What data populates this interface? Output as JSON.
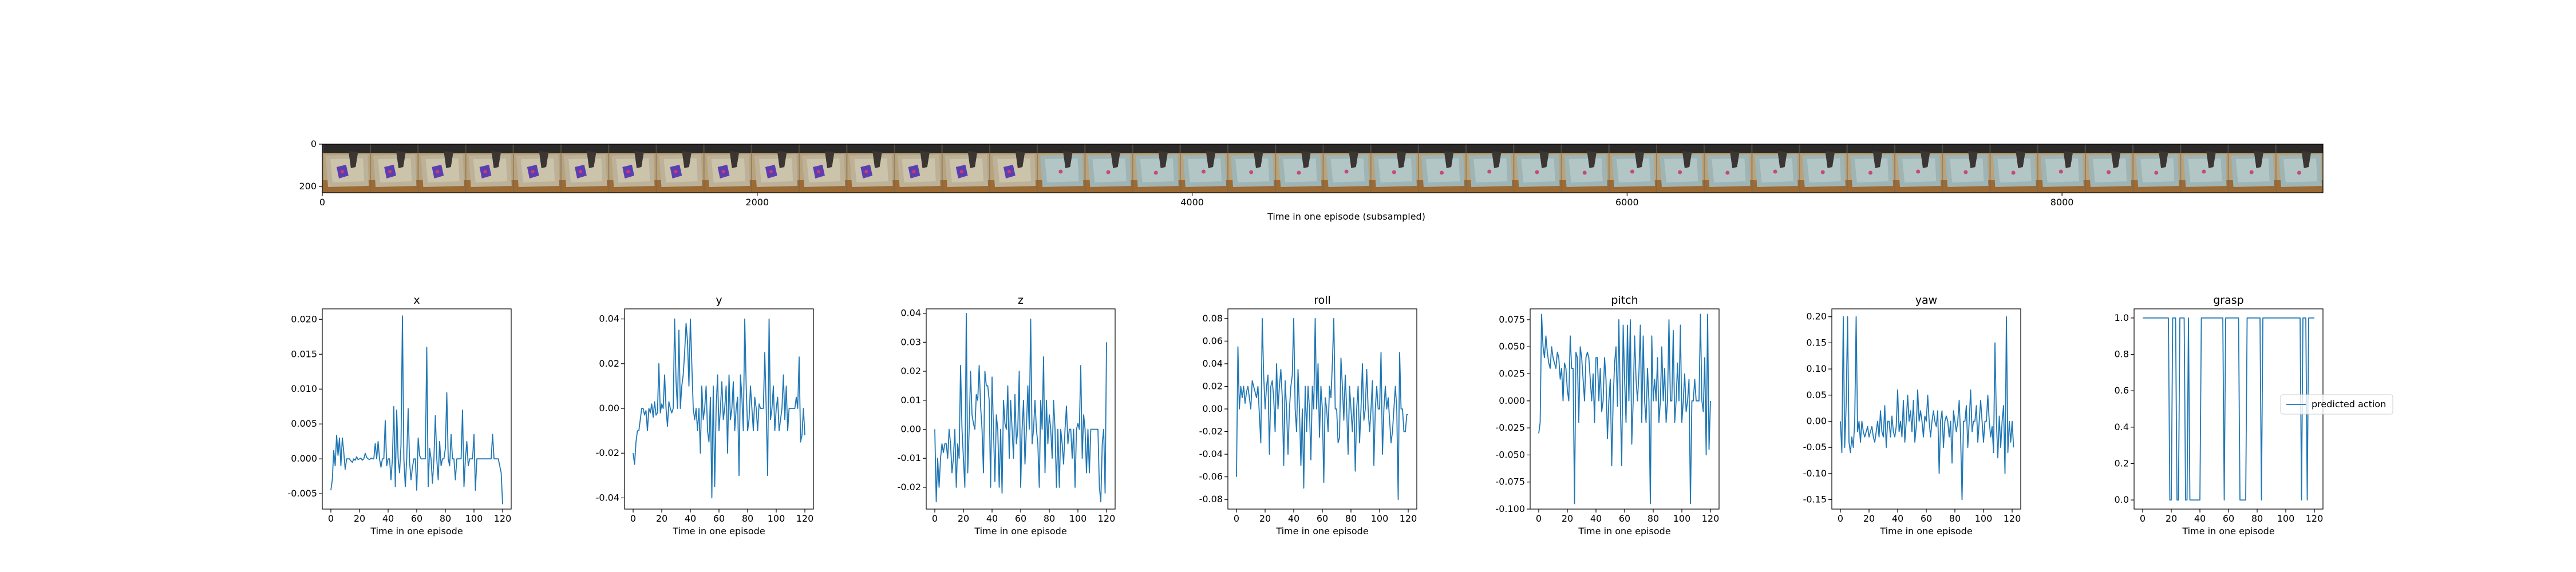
{
  "filmstrip": {
    "xlabel": "Time in one episode (subsampled)",
    "xlim": [
      0,
      9200
    ],
    "ylim": [
      0,
      230
    ],
    "xticks": [
      0,
      2000,
      4000,
      6000,
      8000
    ],
    "yticks": [
      0,
      200
    ],
    "frames": 42
  },
  "chart_data": [
    {
      "type": "line",
      "title": "x",
      "xlabel": "Time in one episode",
      "xlim": [
        -6,
        126
      ],
      "ylim": [
        -0.0072,
        0.0215
      ],
      "xticks": [
        0,
        20,
        40,
        60,
        80,
        100,
        120
      ],
      "yticks": [
        -0.005,
        0.0,
        0.005,
        0.01,
        0.015,
        0.02
      ],
      "series": [
        {
          "values": [
            -0.0045,
            -0.003,
            0.0012,
            -0.001,
            0.0034,
            0.0005,
            0.003,
            -0.001,
            0.003,
            0.001,
            -0.0015,
            0.0,
            0.0,
            0.0,
            -0.0003,
            -0.0005,
            0.0,
            -0.0002,
            0.0003,
            -0.0001,
            0.0,
            0.0001,
            -0.0002,
            0.0,
            0.0008,
            0.0002,
            0.0,
            -0.0001,
            0.0001,
            0.0,
            0.0,
            0.0022,
            0.0,
            0.0025,
            0.0,
            -0.0012,
            0.0,
            0.0,
            0.0055,
            -0.001,
            0.0,
            0.0,
            -0.003,
            0.0,
            0.0075,
            -0.004,
            0.007,
            0.0,
            -0.002,
            0.002,
            0.0205,
            0.0,
            -0.004,
            0.0,
            0.0072,
            -0.0005,
            -0.003,
            -0.0012,
            0.0,
            0.0,
            -0.0045,
            0.003,
            0.0005,
            0.0,
            0.0,
            0.0,
            0.0,
            0.016,
            -0.004,
            0.0015,
            0.0,
            -0.0035,
            0.0,
            0.0062,
            0.0,
            -0.003,
            0.0025,
            -0.001,
            0.0,
            0.0,
            0.0015,
            0.0095,
            0.0,
            -0.001,
            0.0035,
            0.0,
            0.0,
            -0.003,
            0.0,
            0.0,
            0.0,
            0.0,
            0.007,
            -0.004,
            0.0,
            0.0025,
            -0.001,
            0.0,
            0.0,
            0.0,
            0.0035,
            -0.0045,
            0.0,
            0.0,
            0.0,
            0.0,
            0.0,
            0.0,
            0.0,
            0.0,
            0.0,
            0.0,
            0.0,
            0.0035,
            0.0,
            0.0,
            0.0,
            0.0,
            -0.001,
            -0.002,
            -0.0065
          ]
        }
      ]
    },
    {
      "type": "line",
      "title": "y",
      "xlabel": "Time in one episode",
      "xlim": [
        -6,
        126
      ],
      "ylim": [
        -0.045,
        0.0445
      ],
      "xticks": [
        0,
        20,
        40,
        60,
        80,
        100,
        120
      ],
      "yticks": [
        -0.04,
        -0.02,
        0.0,
        0.02,
        0.04
      ],
      "series": [
        {
          "values": [
            -0.02,
            -0.025,
            -0.015,
            -0.01,
            -0.01,
            -0.005,
            0.0,
            0.0,
            -0.003,
            -0.001,
            -0.01,
            0.0,
            -0.002,
            0.002,
            -0.004,
            0.003,
            -0.003,
            -0.002,
            0.02,
            -0.002,
            0.002,
            0.0,
            0.015,
            0.0,
            -0.008,
            0.003,
            0.0,
            -0.002,
            0.0,
            0.04,
            0.012,
            0.0,
            0.035,
            0.0,
            0.01,
            0.015,
            0.025,
            0.038,
            0.03,
            0.01,
            0.04,
            0.02,
            0.0,
            -0.005,
            0.0,
            -0.01,
            0.0,
            -0.02,
            0.01,
            -0.005,
            0.0,
            0.01,
            -0.01,
            -0.015,
            0.005,
            -0.04,
            0.01,
            -0.035,
            0.0,
            0.015,
            -0.01,
            0.0,
            0.012,
            -0.005,
            0.0,
            0.01,
            -0.02,
            0.015,
            -0.005,
            0.0,
            0.012,
            -0.01,
            0.0,
            0.005,
            -0.03,
            0.015,
            0.005,
            -0.01,
            0.04,
            0.01,
            -0.01,
            -0.005,
            0.01,
            0.0,
            -0.01,
            0.005,
            0.0,
            -0.01,
            0.002,
            0.0,
            0.0,
            0.0,
            0.025,
            0.0,
            -0.03,
            0.04,
            -0.005,
            0.0,
            0.01,
            -0.01,
            0.0,
            0.005,
            -0.01,
            -0.005,
            0.0,
            0.015,
            -0.005,
            0.01,
            -0.01,
            0.0,
            0.0,
            0.0,
            0.0,
            0.0,
            0.005,
            0.0,
            0.023,
            -0.015,
            -0.012,
            0.0,
            -0.012
          ]
        }
      ]
    },
    {
      "type": "line",
      "title": "z",
      "xlabel": "Time in one episode",
      "xlim": [
        -6,
        126
      ],
      "ylim": [
        -0.0275,
        0.0415
      ],
      "xticks": [
        0,
        20,
        40,
        60,
        80,
        100,
        120
      ],
      "yticks": [
        -0.02,
        -0.01,
        0.0,
        0.01,
        0.02,
        0.03,
        0.04
      ],
      "series": [
        {
          "values": [
            0.0,
            -0.025,
            -0.01,
            -0.02,
            -0.01,
            -0.005,
            -0.008,
            -0.005,
            -0.005,
            -0.01,
            0.0,
            -0.005,
            -0.015,
            -0.01,
            0.0,
            -0.02,
            -0.005,
            -0.01,
            0.022,
            0.0,
            -0.01,
            -0.02,
            0.04,
            -0.015,
            0.0,
            0.02,
            0.005,
            0.002,
            0.0,
            0.012,
            0.01,
            0.022,
            0.008,
            0.0,
            -0.015,
            0.02,
            0.015,
            0.015,
            0.01,
            -0.02,
            0.018,
            0.0,
            -0.018,
            0.005,
            0.0,
            -0.02,
            0.0,
            -0.022,
            0.01,
            0.002,
            0.0,
            0.015,
            -0.01,
            0.01,
            0.0,
            -0.01,
            0.012,
            -0.005,
            0.0,
            0.02,
            -0.02,
            0.0,
            0.01,
            -0.012,
            0.0,
            0.015,
            0.0,
            0.038,
            -0.005,
            0.0,
            0.01,
            0.0,
            -0.005,
            -0.02,
            0.01,
            0.0,
            0.025,
            -0.015,
            0.01,
            -0.005,
            0.005,
            0.0,
            -0.01,
            0.01,
            0.0,
            -0.02,
            0.0,
            -0.02,
            0.0,
            -0.005,
            -0.012,
            0.0,
            0.008,
            -0.005,
            0.0,
            0.0,
            -0.01,
            0.0,
            -0.02,
            0.0,
            0.002,
            0.0,
            0.022,
            -0.01,
            0.005,
            0.0,
            -0.015,
            0.0,
            -0.015,
            0.0,
            0.0,
            0.0,
            0.0,
            0.0,
            0.0,
            -0.02,
            -0.025,
            -0.005,
            0.0,
            -0.022,
            0.03
          ]
        }
      ]
    },
    {
      "type": "line",
      "title": "roll",
      "xlabel": "Time in one episode",
      "xlim": [
        -6,
        126
      ],
      "ylim": [
        -0.0885,
        0.0885
      ],
      "xticks": [
        0,
        20,
        40,
        60,
        80,
        100,
        120
      ],
      "yticks": [
        -0.08,
        -0.06,
        -0.04,
        -0.02,
        0.0,
        0.02,
        0.04,
        0.06,
        0.08
      ],
      "series": [
        {
          "values": [
            -0.06,
            0.055,
            0.0,
            0.02,
            0.01,
            0.02,
            0.005,
            0.015,
            0.02,
            0.01,
            0.0,
            0.025,
            0.02,
            0.015,
            0.01,
            0.02,
            -0.005,
            -0.03,
            0.08,
            0.03,
            0.0,
            0.02,
            0.03,
            -0.04,
            0.02,
            0.025,
            0.01,
            -0.02,
            0.04,
            0.0,
            0.02,
            0.035,
            0.01,
            -0.05,
            0.025,
            0.0,
            -0.04,
            0.0,
            0.02,
            0.03,
            0.08,
            0.0,
            -0.02,
            0.035,
            0.0,
            -0.05,
            0.0,
            -0.07,
            0.02,
            -0.02,
            0.02,
            0.0,
            -0.045,
            0.02,
            0.0,
            0.08,
            0.0,
            0.04,
            -0.025,
            0.02,
            0.0,
            -0.065,
            0.01,
            0.0,
            -0.02,
            0.02,
            0.01,
            0.04,
            0.08,
            0.0,
            0.0,
            -0.03,
            -0.025,
            0.045,
            0.02,
            -0.01,
            0.03,
            0.0,
            -0.04,
            0.02,
            0.0,
            -0.02,
            0.01,
            -0.055,
            0.0,
            0.02,
            -0.03,
            0.0,
            0.04,
            -0.01,
            0.0,
            0.035,
            0.0,
            -0.02,
            0.0,
            0.025,
            -0.05,
            0.0,
            0.02,
            0.0,
            0.0,
            0.05,
            -0.04,
            0.0,
            0.02,
            0.0,
            0.01,
            -0.01,
            -0.03,
            -0.02,
            0.0,
            0.02,
            0.0,
            -0.08,
            0.05,
            0.0,
            0.0,
            -0.02,
            -0.02,
            -0.005,
            -0.005
          ]
        }
      ]
    },
    {
      "type": "line",
      "title": "pitch",
      "xlabel": "Time in one episode",
      "xlim": [
        -6,
        126
      ],
      "ylim": [
        -0.1,
        0.085
      ],
      "xticks": [
        0,
        20,
        40,
        60,
        80,
        100,
        120
      ],
      "yticks": [
        -0.1,
        -0.075,
        -0.05,
        -0.025,
        0.0,
        0.025,
        0.05,
        0.075
      ],
      "series": [
        {
          "values": [
            -0.03,
            -0.02,
            0.08,
            0.05,
            0.04,
            0.06,
            0.045,
            0.035,
            0.03,
            0.05,
            0.04,
            0.035,
            0.03,
            0.045,
            0.04,
            0.02,
            0.03,
            0.0,
            0.035,
            0.03,
            0.01,
            0.0,
            0.06,
            0.03,
            0.03,
            -0.095,
            0.045,
            0.04,
            -0.02,
            0.05,
            0.04,
            0.02,
            0.0,
            0.04,
            0.045,
            0.04,
            0.02,
            0.0,
            0.025,
            -0.02,
            0.04,
            0.04,
            0.0,
            0.03,
            -0.01,
            0.0,
            0.04,
            0.02,
            -0.035,
            0.0,
            0.02,
            -0.06,
            0.0,
            0.035,
            0.05,
            -0.005,
            0.075,
            0.0,
            -0.06,
            0.07,
            0.02,
            -0.02,
            0.07,
            0.0,
            0.075,
            -0.04,
            0.0,
            0.06,
            0.02,
            0.0,
            0.025,
            0.07,
            -0.02,
            0.06,
            0.0,
            -0.02,
            0.03,
            0.0,
            -0.095,
            0.06,
            0.0,
            0.02,
            0.0,
            0.04,
            -0.02,
            0.0,
            0.05,
            0.0,
            0.03,
            -0.02,
            0.0,
            0.075,
            0.0,
            0.0,
            0.065,
            -0.02,
            0.0,
            0.035,
            0.0,
            0.07,
            -0.02,
            0.0,
            0.025,
            -0.01,
            0.0,
            0.02,
            -0.095,
            0.0,
            0.0,
            0.02,
            0.0,
            0.0,
            0.0,
            0.08,
            0.0,
            -0.01,
            0.04,
            -0.05,
            0.08,
            -0.045,
            0.0
          ]
        }
      ]
    },
    {
      "type": "line",
      "title": "yaw",
      "xlabel": "Time in one episode",
      "xlim": [
        -6,
        126
      ],
      "ylim": [
        -0.168,
        0.215
      ],
      "xticks": [
        0,
        20,
        40,
        60,
        80,
        100,
        120
      ],
      "yticks": [
        -0.15,
        -0.1,
        -0.05,
        0.0,
        0.05,
        0.1,
        0.15,
        0.2
      ],
      "series": [
        {
          "values": [
            0.0,
            -0.06,
            0.2,
            -0.05,
            0.03,
            0.2,
            -0.04,
            -0.06,
            -0.03,
            -0.05,
            0.0,
            0.2,
            -0.02,
            0.0,
            -0.04,
            0.0,
            -0.02,
            -0.03,
            -0.02,
            -0.01,
            -0.03,
            -0.02,
            -0.01,
            -0.03,
            -0.04,
            -0.02,
            0.0,
            -0.03,
            0.02,
            -0.02,
            -0.03,
            0.03,
            -0.05,
            0.0,
            0.0,
            -0.03,
            0.01,
            -0.02,
            -0.03,
            -0.01,
            0.06,
            -0.02,
            0.0,
            -0.03,
            0.04,
            -0.04,
            0.0,
            0.05,
            0.0,
            0.02,
            -0.02,
            0.04,
            -0.04,
            -0.01,
            0.06,
            0.0,
            0.02,
            0.0,
            -0.03,
            0.01,
            0.0,
            0.05,
            0.0,
            -0.03,
            0.0,
            0.02,
            0.0,
            -0.01,
            0.02,
            -0.1,
            0.0,
            0.02,
            -0.05,
            0.0,
            0.01,
            0.0,
            -0.03,
            0.0,
            -0.08,
            0.02,
            0.0,
            -0.02,
            0.0,
            0.04,
            -0.03,
            -0.15,
            0.0,
            0.0,
            0.03,
            -0.05,
            0.0,
            0.06,
            -0.02,
            0.0,
            0.0,
            0.03,
            -0.04,
            0.0,
            0.04,
            0.0,
            -0.04,
            0.0,
            0.0,
            0.05,
            0.0,
            -0.03,
            -0.01,
            -0.06,
            0.15,
            0.0,
            -0.07,
            0.01,
            -0.05,
            0.0,
            0.03,
            -0.1,
            0.2,
            -0.06,
            0.0,
            -0.04,
            0.0,
            -0.05
          ]
        }
      ]
    },
    {
      "type": "line",
      "title": "grasp",
      "xlabel": "Time in one episode",
      "xlim": [
        -6,
        126
      ],
      "ylim": [
        -0.05,
        1.05
      ],
      "xticks": [
        0,
        20,
        40,
        60,
        80,
        100,
        120
      ],
      "yticks": [
        0.0,
        0.2,
        0.4,
        0.6,
        0.8,
        1.0
      ],
      "legend": {
        "label": "predicted action",
        "position": "right"
      },
      "series": [
        {
          "name": "predicted action",
          "values": [
            1,
            1,
            1,
            1,
            1,
            1,
            1,
            1,
            1,
            1,
            1,
            1,
            1,
            1,
            1,
            1,
            1,
            1,
            1,
            0,
            0,
            1,
            1,
            1,
            0,
            0,
            1,
            1,
            1,
            1,
            0,
            0,
            1,
            0,
            0,
            0,
            0,
            0,
            0,
            0,
            0,
            1,
            1,
            1,
            1,
            1,
            1,
            1,
            1,
            1,
            1,
            1,
            1,
            1,
            1,
            1,
            1,
            0,
            1,
            1,
            1,
            1,
            1,
            1,
            1,
            1,
            1,
            1,
            0,
            0,
            0,
            0,
            0,
            1,
            1,
            1,
            1,
            1,
            1,
            1,
            1,
            1,
            1,
            0,
            1,
            1,
            1,
            1,
            1,
            1,
            1,
            1,
            1,
            1,
            1,
            1,
            1,
            1,
            1,
            1,
            1,
            1,
            1,
            1,
            1,
            1,
            1,
            1,
            1,
            1,
            1,
            0,
            1,
            1,
            1,
            0,
            1,
            1,
            1,
            1,
            1
          ]
        }
      ]
    }
  ]
}
